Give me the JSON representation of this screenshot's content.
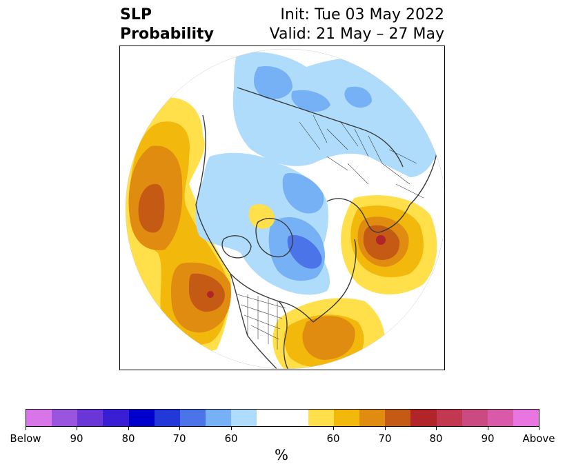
{
  "title": {
    "left_line1": "SLP",
    "left_line2": "Probability",
    "right_line1": "Init: Tue 03 May 2022",
    "right_line2": "Valid: 21 May – 27 May"
  },
  "map": {
    "projection": "north-polar-stereographic",
    "region": "Northern Hemisphere",
    "features": [
      "coastlines",
      "country borders",
      "US state borders"
    ]
  },
  "colorbar": {
    "colors": [
      "#d875e8",
      "#9a55e0",
      "#6a36d8",
      "#3a1ed5",
      "#0000cc",
      "#2338d8",
      "#4a74e8",
      "#76b0f5",
      "#aedcfa",
      "#ffffff",
      "#ffffff",
      "#ffe04a",
      "#f3b80c",
      "#e08c10",
      "#c55a15",
      "#b0242a",
      "#c23850",
      "#cc4a82",
      "#d85aa8",
      "#e875e0"
    ],
    "tick_labels": [
      "Below",
      "90",
      "80",
      "70",
      "60",
      "60",
      "70",
      "80",
      "90",
      "Above"
    ],
    "unit": "%"
  }
}
